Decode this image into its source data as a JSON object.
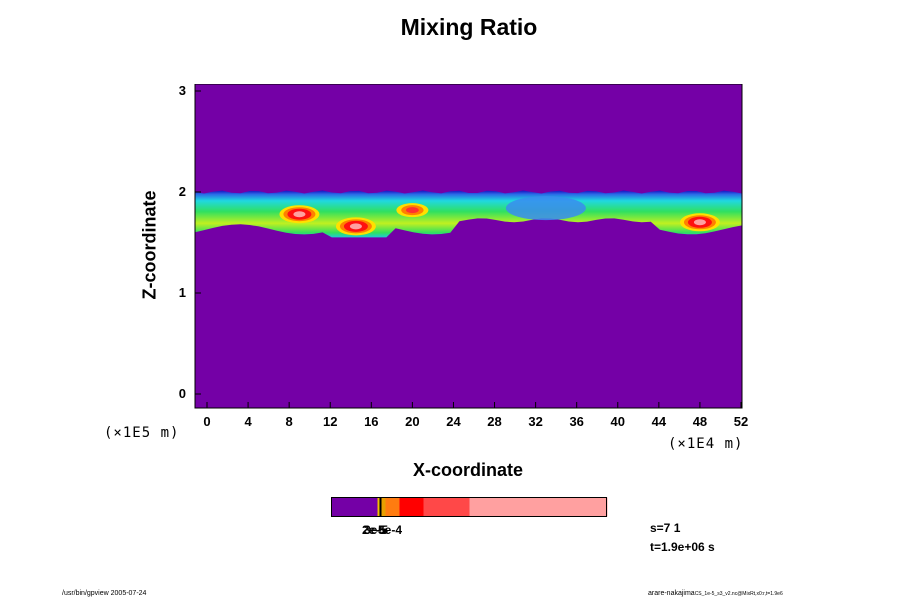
{
  "chart_data": {
    "type": "heatmap",
    "title": "Mixing Ratio",
    "xlabel": "X-coordinate",
    "ylabel": "Z-coordinate",
    "x_ticks": [
      "0",
      "4",
      "8",
      "12",
      "16",
      "20",
      "24",
      "28",
      "32",
      "36",
      "40",
      "44",
      "48",
      "52"
    ],
    "y_ticks": [
      "0",
      "1",
      "2",
      "3"
    ],
    "x_scale_label": "(×1E4 m)",
    "y_scale_label": "(×1E5 m)",
    "xlim": [
      0,
      52
    ],
    "ylim": [
      0,
      3
    ],
    "layer_top": 2.0,
    "layer_bottom_range": [
      1.55,
      1.75
    ],
    "background_color": "#7400a6",
    "colorbar_colors": [
      "#7400a6",
      "#f0c000",
      "#e8a000",
      "#ff7c10",
      "#ff0000",
      "#ff4848",
      "#ffa0a0"
    ],
    "colorbar_labels": [
      "2e-5",
      "3e-5",
      "5e-4"
    ],
    "hot_spots": [
      {
        "x": 9,
        "z": 1.78,
        "level": "high"
      },
      {
        "x": 14.5,
        "z": 1.66,
        "level": "high"
      },
      {
        "x": 20,
        "z": 1.82,
        "level": "medium"
      },
      {
        "x": 48,
        "z": 1.7,
        "level": "high"
      }
    ]
  },
  "info": {
    "step": "s=7 1",
    "time": "t=1.9e+06 s"
  },
  "footer": {
    "left": "/usr/bin/gpview 2005-07-24",
    "right_main": "arare-nakajima",
    "right_small": "CS_1e-5_s3_v2.nc@MixRt,x0:r,t=1.9e6"
  }
}
